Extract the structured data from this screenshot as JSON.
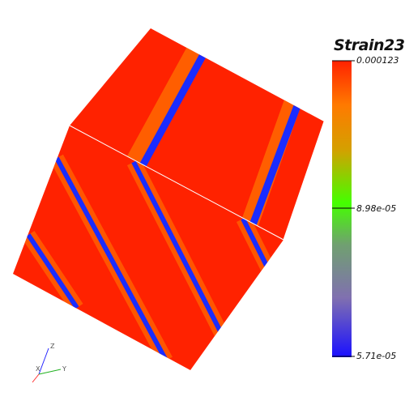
{
  "legend": {
    "title": "Strain23",
    "max_label": "0.000123",
    "mid_label": "8.98e-05",
    "min_label": "5.71e-05",
    "colors": [
      "#ff2200",
      "#ff8800",
      "#44ff00",
      "#2200ff"
    ]
  },
  "triad": {
    "z": "Z",
    "x": "X",
    "y": "Y"
  },
  "colors": {
    "field": "#ff2200",
    "band": "#1a2cff",
    "halo": "#ff8800"
  }
}
